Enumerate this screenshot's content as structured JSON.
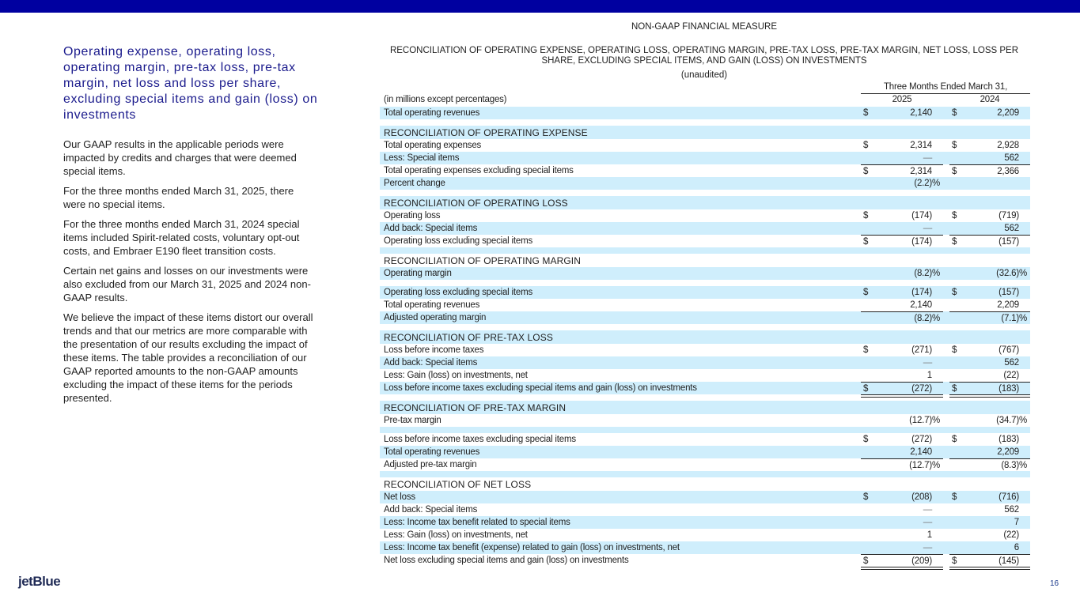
{
  "colors": {
    "top_bar": "#0000a0",
    "title": "#1a1a8c",
    "row_shade": "#cfeefc"
  },
  "left": {
    "title": "Operating expense, operating loss, operating margin, pre-tax loss,  pre-tax margin, net loss and loss per share, excluding special items and gain (loss) on investments",
    "paragraphs": [
      "Our GAAP results in the applicable periods were impacted by credits and charges that were deemed special items.",
      "For the three months ended March 31, 2025, there were no special items.",
      "For the three months ended March 31, 2024 special items included Spirit-related costs, voluntary opt-out costs, and Embraer E190 fleet transition costs.",
      "Certain net gains and losses on our investments were also excluded from our March 31, 2025 and 2024 non-GAAP results.",
      "We believe the impact of these items distort our overall trends and that our metrics are more comparable with the presentation of our results excluding the impact of these items. The table provides a reconciliation of our GAAP reported amounts to the non-GAAP amounts excluding the impact of these items for the periods presented."
    ]
  },
  "header": {
    "kicker": "NON-GAAP FINANCIAL MEASURE",
    "title": "RECONCILIATION OF OPERATING EXPENSE, OPERATING LOSS, OPERATING MARGIN, PRE-TAX LOSS, PRE-TAX MARGIN, NET LOSS, LOSS PER SHARE, EXCLUDING SPECIAL ITEMS, AND GAIN (LOSS) ON INVESTMENTS",
    "unaudited": "(unaudited)"
  },
  "table": {
    "period": "Three Months Ended March 31,",
    "units": "(in millions except percentages)",
    "years": [
      "2025",
      "2024"
    ],
    "rows": [
      {
        "type": "line",
        "label": "Total operating revenues",
        "c1": {
          "d": "$",
          "v": "2,140"
        },
        "c2": {
          "d": "$",
          "v": "2,209"
        }
      },
      {
        "type": "spacer"
      },
      {
        "type": "section",
        "label": "RECONCILIATION OF OPERATING EXPENSE"
      },
      {
        "type": "line",
        "label": "Total operating expenses",
        "c1": {
          "d": "$",
          "v": "2,314"
        },
        "c2": {
          "d": "$",
          "v": "2,928"
        }
      },
      {
        "type": "line",
        "label": "Less: Special items",
        "c1": {
          "v": "—"
        },
        "c2": {
          "v": "562"
        }
      },
      {
        "type": "line",
        "rule": "total",
        "label": "Total operating expenses excluding special items",
        "c1": {
          "d": "$",
          "v": "2,314"
        },
        "c2": {
          "d": "$",
          "v": "2,366"
        }
      },
      {
        "type": "line",
        "label": "Percent change",
        "c1": {
          "v": "(2.2)",
          "p": "%"
        }
      },
      {
        "type": "spacer"
      },
      {
        "type": "section",
        "label": "RECONCILIATION OF OPERATING LOSS"
      },
      {
        "type": "line",
        "label": "Operating loss",
        "c1": {
          "d": "$",
          "v": "(174)"
        },
        "c2": {
          "d": "$",
          "v": "(719)"
        }
      },
      {
        "type": "line",
        "label": "Add back: Special items",
        "c1": {
          "v": "—"
        },
        "c2": {
          "v": "562"
        }
      },
      {
        "type": "line",
        "rule": "total",
        "label": "Operating loss excluding special items",
        "c1": {
          "d": "$",
          "v": "(174)"
        },
        "c2": {
          "d": "$",
          "v": "(157)"
        }
      },
      {
        "type": "spacer"
      },
      {
        "type": "section",
        "label": "RECONCILIATION OF OPERATING MARGIN"
      },
      {
        "type": "line",
        "label": "Operating margin",
        "c1": {
          "v": "(8.2)",
          "p": "%"
        },
        "c2": {
          "v": "(32.6)",
          "p": "%"
        }
      },
      {
        "type": "spacer"
      },
      {
        "type": "line",
        "label": "Operating loss excluding special items",
        "c1": {
          "d": "$",
          "v": "(174)"
        },
        "c2": {
          "d": "$",
          "v": "(157)"
        }
      },
      {
        "type": "line",
        "label": "Total operating revenues",
        "c1": {
          "v": "2,140"
        },
        "c2": {
          "v": "2,209"
        }
      },
      {
        "type": "line",
        "rule": "sub",
        "label": "Adjusted operating margin",
        "c1": {
          "v": "(8.2)",
          "p": "%"
        },
        "c2": {
          "v": "(7.1)",
          "p": "%"
        }
      },
      {
        "type": "spacer"
      },
      {
        "type": "section",
        "label": "RECONCILIATION OF PRE-TAX LOSS"
      },
      {
        "type": "line",
        "label": "Loss before income taxes",
        "c1": {
          "d": "$",
          "v": "(271)"
        },
        "c2": {
          "d": "$",
          "v": "(767)"
        }
      },
      {
        "type": "line",
        "label": "Add back: Special items",
        "c1": {
          "v": "—"
        },
        "c2": {
          "v": "562"
        }
      },
      {
        "type": "line",
        "label": "Less: Gain (loss) on investments, net",
        "c1": {
          "v": "1"
        },
        "c2": {
          "v": "(22)"
        }
      },
      {
        "type": "line",
        "rule": "total",
        "label": "Loss before income taxes excluding special items and gain (loss) on investments",
        "c1": {
          "d": "$",
          "v": "(272)"
        },
        "c2": {
          "d": "$",
          "v": "(183)"
        }
      },
      {
        "type": "spacer"
      },
      {
        "type": "section",
        "label": "RECONCILIATION OF PRE-TAX MARGIN"
      },
      {
        "type": "line",
        "label": "Pre-tax margin",
        "c1": {
          "v": "(12.7)",
          "p": "%"
        },
        "c2": {
          "v": "(34.7)",
          "p": "%"
        }
      },
      {
        "type": "spacer"
      },
      {
        "type": "line",
        "label": "Loss before income taxes excluding special items",
        "c1": {
          "d": "$",
          "v": "(272)"
        },
        "c2": {
          "d": "$",
          "v": "(183)"
        }
      },
      {
        "type": "line",
        "label": "Total operating revenues",
        "c1": {
          "v": "2,140"
        },
        "c2": {
          "v": "2,209"
        }
      },
      {
        "type": "line",
        "rule": "sub",
        "label": "Adjusted pre-tax margin",
        "c1": {
          "v": "(12.7)",
          "p": "%"
        },
        "c2": {
          "v": "(8.3)",
          "p": "%"
        }
      },
      {
        "type": "spacer"
      },
      {
        "type": "section",
        "label": "RECONCILIATION OF NET LOSS"
      },
      {
        "type": "line",
        "label": "Net loss",
        "c1": {
          "d": "$",
          "v": "(208)"
        },
        "c2": {
          "d": "$",
          "v": "(716)"
        }
      },
      {
        "type": "line",
        "label": "Add back: Special items",
        "c1": {
          "v": "—"
        },
        "c2": {
          "v": "562"
        }
      },
      {
        "type": "line",
        "label": "Less: Income tax benefit related to special items",
        "c1": {
          "v": "—"
        },
        "c2": {
          "v": "7"
        }
      },
      {
        "type": "line",
        "label": "Less: Gain (loss) on investments, net",
        "c1": {
          "v": "1"
        },
        "c2": {
          "v": "(22)"
        }
      },
      {
        "type": "line",
        "label": "Less: Income tax benefit (expense) related to gain (loss) on investments, net",
        "c1": {
          "v": "—"
        },
        "c2": {
          "v": "6"
        }
      },
      {
        "type": "line",
        "rule": "total",
        "label": "Net loss excluding special items and gain (loss) on investments",
        "c1": {
          "d": "$",
          "v": "(209)"
        },
        "c2": {
          "d": "$",
          "v": "(145)"
        }
      }
    ]
  },
  "footer": {
    "logo": "jetBlue",
    "page_number": "16"
  }
}
